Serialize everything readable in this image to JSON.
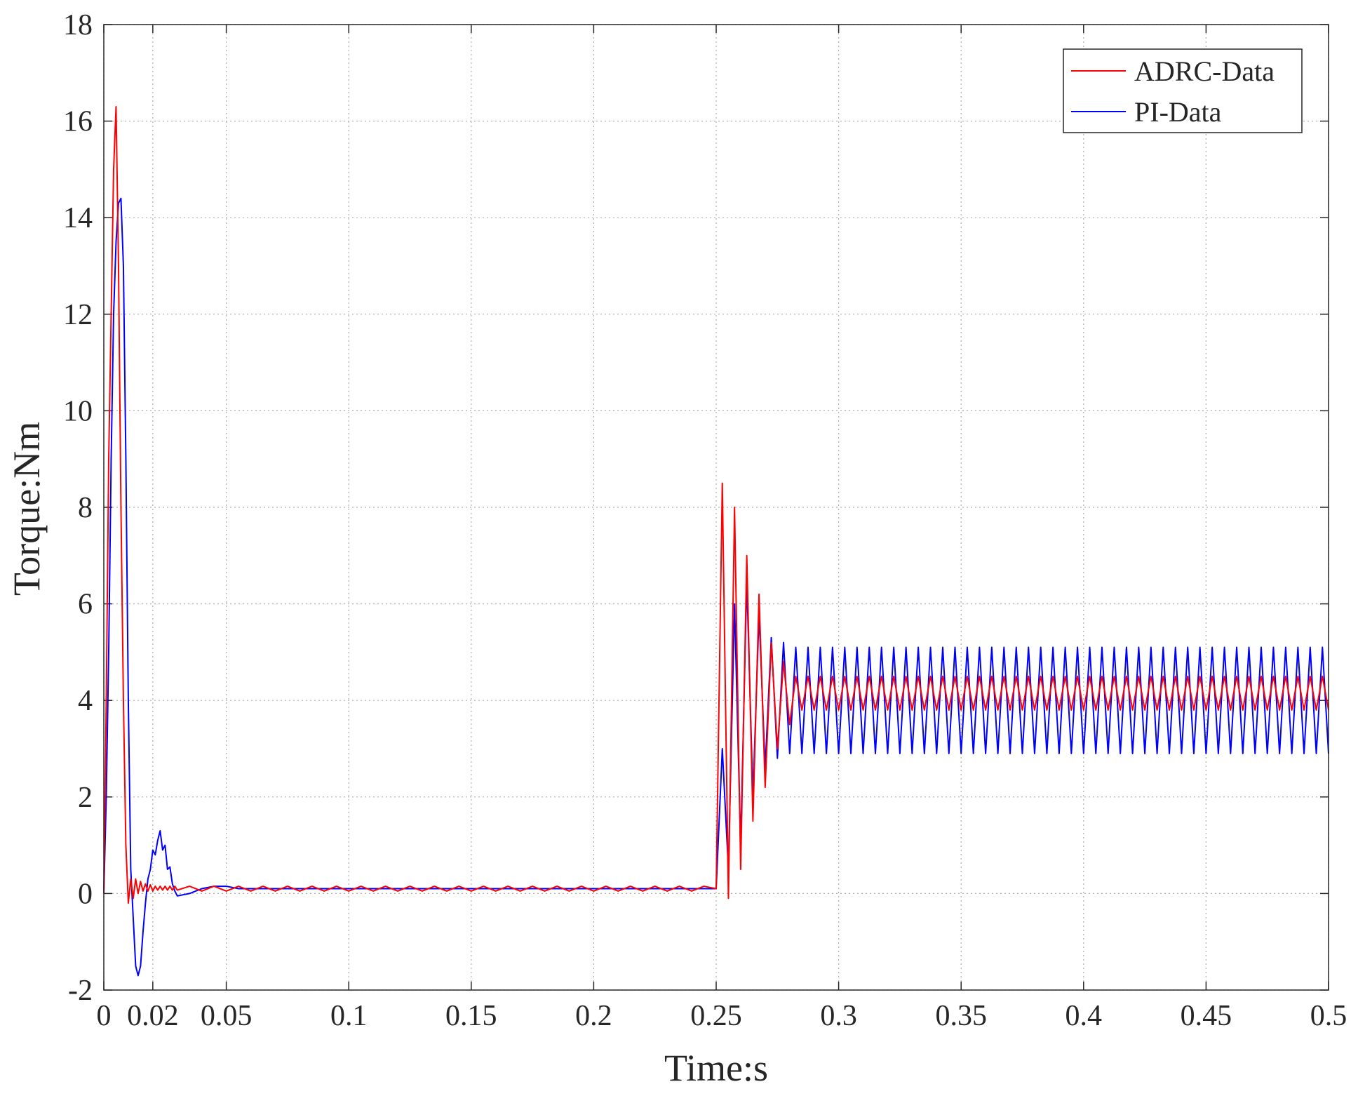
{
  "chart_data": {
    "type": "line",
    "xlabel": "Time:s",
    "ylabel": "Torque:Nm",
    "x": [
      0,
      0.001,
      0.002,
      0.003,
      0.004,
      0.005,
      0.006,
      0.007,
      0.008,
      0.009,
      0.01,
      0.011,
      0.012,
      0.013,
      0.014,
      0.015,
      0.016,
      0.017,
      0.018,
      0.019,
      0.02,
      0.021,
      0.022,
      0.023,
      0.024,
      0.025,
      0.026,
      0.027,
      0.028,
      0.029,
      0.03,
      0.035,
      0.04,
      0.045,
      0.05,
      0.055,
      0.06,
      0.065,
      0.07,
      0.075,
      0.08,
      0.085,
      0.09,
      0.095,
      0.1,
      0.105,
      0.11,
      0.115,
      0.12,
      0.125,
      0.13,
      0.135,
      0.14,
      0.145,
      0.15,
      0.155,
      0.16,
      0.165,
      0.17,
      0.175,
      0.18,
      0.185,
      0.19,
      0.195,
      0.2,
      0.205,
      0.21,
      0.215,
      0.22,
      0.225,
      0.23,
      0.235,
      0.24,
      0.245,
      0.25,
      0.2525,
      0.255,
      0.2575,
      0.26,
      0.2625,
      0.265,
      0.2675,
      0.27,
      0.2725,
      0.275,
      0.2775,
      0.28,
      0.2825,
      0.285,
      0.2875,
      0.29,
      0.2925,
      0.295,
      0.2975,
      0.3,
      0.3025,
      0.305,
      0.3075,
      0.31,
      0.3125,
      0.315,
      0.3175,
      0.32,
      0.3225,
      0.325,
      0.3275,
      0.33,
      0.3325,
      0.335,
      0.3375,
      0.34,
      0.3425,
      0.345,
      0.3475,
      0.35,
      0.3525,
      0.355,
      0.3575,
      0.36,
      0.3625,
      0.365,
      0.3675,
      0.37,
      0.3725,
      0.375,
      0.3775,
      0.38,
      0.3825,
      0.385,
      0.3875,
      0.39,
      0.3925,
      0.395,
      0.3975,
      0.4,
      0.4025,
      0.405,
      0.4075,
      0.41,
      0.4125,
      0.415,
      0.4175,
      0.42,
      0.4225,
      0.425,
      0.4275,
      0.43,
      0.4325,
      0.435,
      0.4375,
      0.44,
      0.4425,
      0.445,
      0.4475,
      0.45,
      0.4525,
      0.455,
      0.4575,
      0.46,
      0.4625,
      0.465,
      0.4675,
      0.47,
      0.4725,
      0.475,
      0.4775,
      0.48,
      0.4825,
      0.485,
      0.4875,
      0.49,
      0.4925,
      0.495,
      0.4975,
      0.5
    ],
    "series": [
      {
        "name": "PI-Data",
        "color": "#0000ff",
        "values": [
          0,
          2,
          5,
          9,
          12,
          13.5,
          14.3,
          14.4,
          13,
          9,
          4,
          0.5,
          -0.5,
          -1.5,
          -1.7,
          -1.5,
          -0.8,
          -0.2,
          0.3,
          0.5,
          0.9,
          0.8,
          1.1,
          1.3,
          0.9,
          1,
          0.5,
          0.55,
          0.2,
          0.05,
          -0.05,
          0,
          0.1,
          0.15,
          0.15,
          0.1,
          0.1,
          0.1,
          0.1,
          0.1,
          0.1,
          0.1,
          0.1,
          0.1,
          0.1,
          0.1,
          0.1,
          0.1,
          0.1,
          0.1,
          0.1,
          0.1,
          0.1,
          0.1,
          0.1,
          0.1,
          0.1,
          0.1,
          0.1,
          0.1,
          0.1,
          0.1,
          0.1,
          0.1,
          0.1,
          0.1,
          0.1,
          0.1,
          0.1,
          0.1,
          0.1,
          0.1,
          0.1,
          0.1,
          0.1,
          3,
          0.5,
          6,
          1,
          6.5,
          2,
          5.8,
          2.6,
          5.3,
          2.8,
          5.2,
          2.9,
          5.1,
          2.9,
          5.1,
          2.9,
          5.1,
          2.9,
          5.1,
          2.9,
          5.1,
          2.9,
          5.1,
          2.9,
          5.1,
          2.9,
          5.1,
          2.9,
          5.1,
          2.9,
          5.1,
          2.9,
          5.1,
          2.9,
          5.1,
          2.9,
          5.1,
          2.9,
          5.1,
          2.9,
          5.1,
          2.9,
          5.1,
          2.9,
          5.1,
          2.9,
          5.1,
          2.9,
          5.1,
          2.9,
          5.1,
          2.9,
          5.1,
          2.9,
          5.1,
          2.9,
          5.1,
          2.9,
          5.1,
          2.9,
          5.1,
          2.9,
          5.1,
          2.9,
          5.1,
          2.9,
          5.1,
          2.9,
          5.1,
          2.9,
          5.1,
          2.9,
          5.1,
          2.9,
          5.1,
          2.9,
          5.1,
          2.9,
          5.1,
          2.9,
          5.1,
          2.9,
          5.1,
          2.9,
          5.1,
          2.9,
          5.1,
          2.9,
          5.1,
          2.9,
          5.1,
          2.9,
          5.1,
          2.9,
          5.1,
          2.9,
          5.1,
          2.9,
          5.1,
          2.9
        ]
      },
      {
        "name": "ADRC-Data",
        "color": "#ff0000",
        "values": [
          0,
          4,
          9,
          12,
          15,
          16.3,
          13,
          8,
          4,
          1,
          -0.2,
          0.3,
          -0.1,
          0.3,
          0,
          0.25,
          0.05,
          0.2,
          0.05,
          0.18,
          0.05,
          0.15,
          0.07,
          0.15,
          0.07,
          0.15,
          0.07,
          0.15,
          0.07,
          0.15,
          0.07,
          0.15,
          0.05,
          0.15,
          0.05,
          0.15,
          0.05,
          0.15,
          0.05,
          0.15,
          0.05,
          0.15,
          0.05,
          0.15,
          0.05,
          0.15,
          0.05,
          0.15,
          0.05,
          0.15,
          0.05,
          0.15,
          0.05,
          0.15,
          0.05,
          0.15,
          0.05,
          0.15,
          0.05,
          0.15,
          0.05,
          0.15,
          0.05,
          0.15,
          0.05,
          0.15,
          0.05,
          0.15,
          0.05,
          0.15,
          0.05,
          0.15,
          0.05,
          0.15,
          0.1,
          8.5,
          -0.1,
          8,
          0.5,
          7,
          1.5,
          6.2,
          2.2,
          5.2,
          3,
          4.8,
          3.5,
          4.5,
          3.8,
          4.5,
          3.8,
          4.5,
          3.8,
          4.5,
          3.8,
          4.5,
          3.8,
          4.5,
          3.8,
          4.5,
          3.8,
          4.5,
          3.8,
          4.5,
          3.8,
          4.5,
          3.8,
          4.5,
          3.8,
          4.5,
          3.8,
          4.5,
          3.8,
          4.5,
          3.8,
          4.5,
          3.8,
          4.5,
          3.8,
          4.5,
          3.8,
          4.5,
          3.8,
          4.5,
          3.8,
          4.5,
          3.8,
          4.5,
          3.8,
          4.5,
          3.8,
          4.5,
          3.8,
          4.5,
          3.8,
          4.5,
          3.8,
          4.5,
          3.8,
          4.5,
          3.8,
          4.5,
          3.8,
          4.5,
          3.8,
          4.5,
          3.8,
          4.5,
          3.8,
          4.5,
          3.8,
          4.5,
          3.8,
          4.5,
          3.8,
          4.5,
          3.8,
          4.5,
          3.8,
          4.5,
          3.8,
          4.5,
          3.8,
          4.5,
          3.8,
          4.5,
          3.8,
          4.5,
          3.8,
          4.5,
          3.8,
          4.5,
          3.8,
          4.5,
          3.8
        ]
      }
    ],
    "legend_order": [
      1,
      0
    ],
    "legend": "upper right",
    "xlim": [
      0,
      0.5
    ],
    "xticks": [
      0,
      0.02,
      0.05,
      0.1,
      0.15,
      0.2,
      0.25,
      0.3,
      0.35,
      0.4,
      0.45,
      0.5
    ],
    "ylim": [
      -2,
      18
    ],
    "yticks": [
      -2,
      0,
      2,
      4,
      6,
      8,
      10,
      12,
      14,
      16,
      18
    ],
    "grid": true
  }
}
